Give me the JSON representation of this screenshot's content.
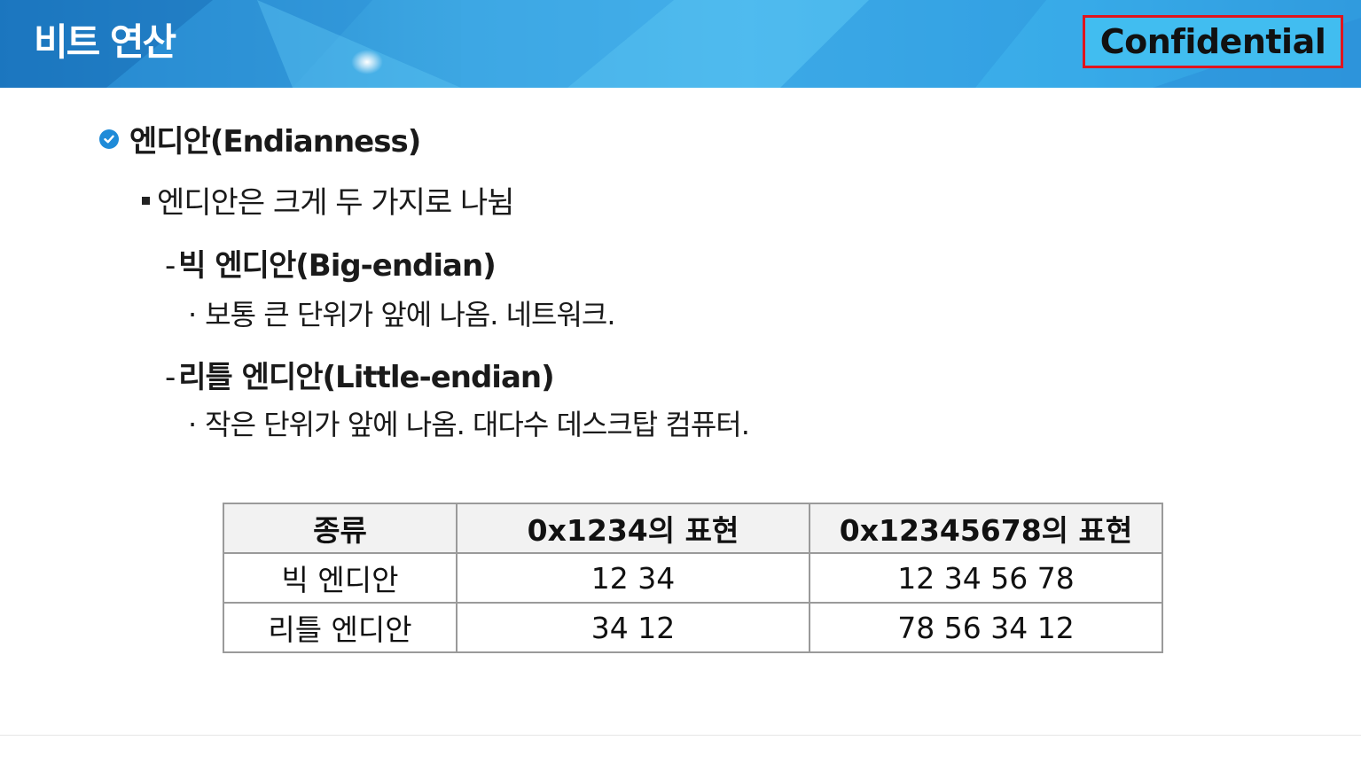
{
  "header": {
    "title": "비트 연산",
    "badge": "Confidential"
  },
  "colors": {
    "banner_blue": "#3aa3e0",
    "badge_border": "#e0141e",
    "check_icon": "#1f8bd8"
  },
  "content": {
    "heading": "엔디안(Endianness)",
    "intro": "엔디안은 크게 두 가지로 나뉨",
    "big": {
      "dash": "-",
      "title": "빅 엔디안(Big-endian)",
      "bullet": "·",
      "desc": "보통 큰 단위가 앞에 나옴. 네트워크."
    },
    "little": {
      "dash": "-",
      "title": "리틀 엔디안(Little-endian)",
      "bullet": "·",
      "desc": "작은 단위가 앞에 나옴. 대다수 데스크탑 컴퓨터."
    }
  },
  "table": {
    "headers": [
      "종류",
      "0x1234의 표현",
      "0x12345678의 표현"
    ],
    "rows": [
      [
        "빅 엔디안",
        "12 34",
        "12 34 56 78"
      ],
      [
        "리틀 엔디안",
        "34 12",
        "78 56 34 12"
      ]
    ]
  }
}
